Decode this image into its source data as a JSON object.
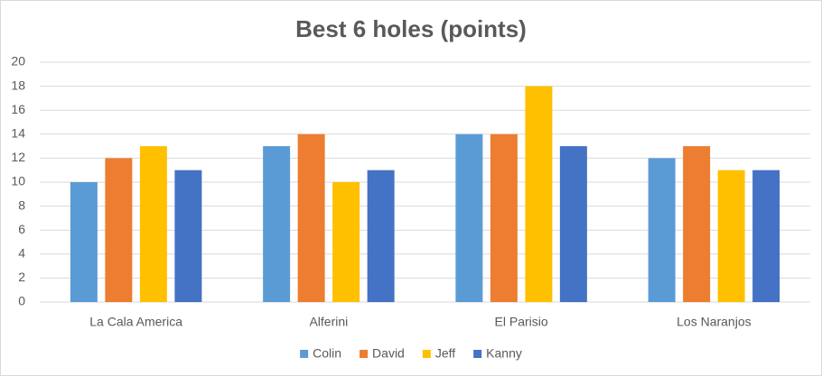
{
  "chart_data": {
    "type": "bar",
    "title": "Best 6 holes (points)",
    "categories": [
      "La Cala America",
      "Alferini",
      "El Parisio",
      "Los Naranjos"
    ],
    "series": [
      {
        "name": "Colin",
        "color": "#5b9bd5",
        "values": [
          10,
          13,
          14,
          12
        ]
      },
      {
        "name": "David",
        "color": "#ed7d31",
        "values": [
          12,
          14,
          14,
          13
        ]
      },
      {
        "name": "Jeff",
        "color": "#ffc000",
        "values": [
          13,
          10,
          18,
          11
        ]
      },
      {
        "name": "Kanny",
        "color": "#4472c4",
        "values": [
          11,
          11,
          13,
          11
        ]
      }
    ],
    "ylim": [
      0,
      20
    ],
    "yticks": [
      0,
      2,
      4,
      6,
      8,
      10,
      12,
      14,
      16,
      18,
      20
    ],
    "grid": true,
    "legend": "bottom"
  }
}
